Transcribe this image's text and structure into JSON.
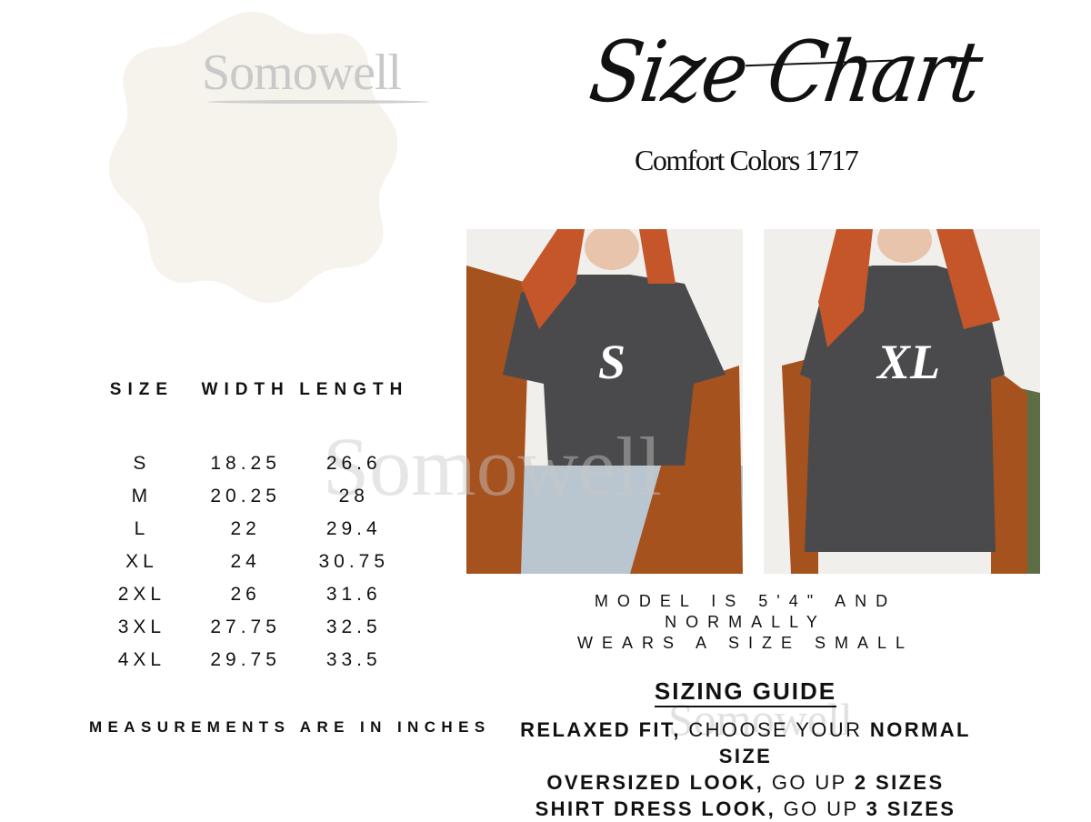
{
  "brand": {
    "logo_text": "Somowell"
  },
  "header": {
    "title": "Size Chart",
    "subtitle": "Comfort Colors 1717"
  },
  "photos": [
    {
      "label": "S"
    },
    {
      "label": "XL"
    }
  ],
  "table": {
    "headers": [
      "SIZE",
      "WIDTH",
      "LENGTH"
    ],
    "rows": [
      [
        "S",
        "18.25",
        "26.6"
      ],
      [
        "M",
        "20.25",
        "28"
      ],
      [
        "L",
        "22",
        "29.4"
      ],
      [
        "XL",
        "24",
        "30.75"
      ],
      [
        "2XL",
        "26",
        "31.6"
      ],
      [
        "3XL",
        "27.75",
        "32.5"
      ],
      [
        "4XL",
        "29.75",
        "33.5"
      ]
    ]
  },
  "note": "MEASUREMENTS ARE IN INCHES",
  "model": {
    "line1": "MODEL IS 5'4\" AND NORMALLY",
    "line2": "WEARS A SIZE SMALL"
  },
  "guide": {
    "title": "SIZING GUIDE",
    "lines": [
      {
        "a": "RELAXED FIT,",
        "b": " CHOOSE YOUR ",
        "c": "NORMAL SIZE"
      },
      {
        "a": "OVERSIZED LOOK,",
        "b": " GO UP ",
        "c": "2 SIZES"
      },
      {
        "a": "SHIRT DRESS LOOK,",
        "b": " GO UP ",
        "c": "3 SIZES"
      }
    ]
  },
  "colors": {
    "blob": "#f6f3ec",
    "shirt": "#4a4a4c",
    "jacket": "#a5521f",
    "hair": "#c4562a",
    "watermark": "#c9c9c9"
  }
}
